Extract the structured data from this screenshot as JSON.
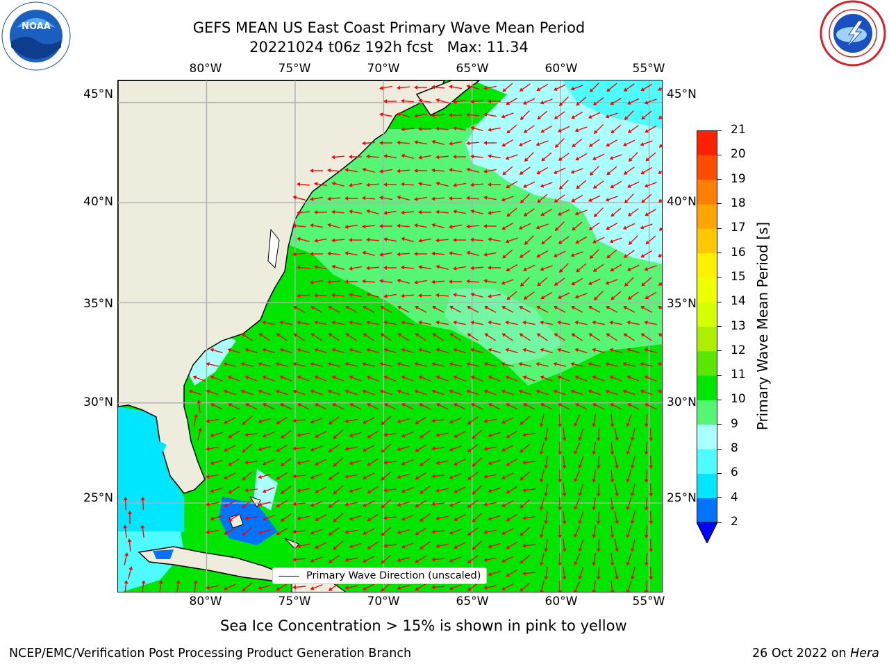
{
  "title": {
    "line1": "GEFS MEAN US East Coast Primary Wave Mean Period",
    "line2": "20221024 t06z 192h fcst   Max: 11.34"
  },
  "logos": {
    "left": {
      "name": "noaa-logo",
      "text": "NOAA",
      "ring_text": "NATIONAL OCEANIC AND ATMOSPHERIC ADMINISTRATION · U.S. DEPARTMENT OF COMMERCE"
    },
    "right": {
      "name": "nws-logo",
      "ring_text": "NATIONAL WEATHER SERVICE"
    }
  },
  "map": {
    "lon_labels": [
      "80°W",
      "75°W",
      "70°W",
      "65°W",
      "60°W",
      "55°W"
    ],
    "lat_labels": [
      "45°N",
      "40°N",
      "35°N",
      "30°N",
      "25°N"
    ],
    "lon_values": [
      -80,
      -75,
      -70,
      -65,
      -60,
      -55
    ],
    "lat_values": [
      45,
      40,
      35,
      30,
      25
    ],
    "extent": {
      "lon": [
        -85,
        -54.2
      ],
      "lat": [
        20.5,
        46.1
      ]
    },
    "legend_label": "Primary Wave Direction (unscaled)",
    "arrow_color": "#ff0000",
    "land_color": "#eeecdd"
  },
  "colorbar": {
    "label": "Primary Wave Mean Period [s]",
    "ticks": [
      "2",
      "4",
      "6",
      "8",
      "9",
      "10",
      "11",
      "12",
      "13",
      "14",
      "15",
      "16",
      "17",
      "18",
      "19",
      "20",
      "21"
    ],
    "colors": [
      "#0073ff",
      "#00e6ff",
      "#4dfcff",
      "#aaffff",
      "#55f576",
      "#00e600",
      "#5ae600",
      "#acf000",
      "#d6ff00",
      "#eeff00",
      "#fff000",
      "#ffc800",
      "#ffa500",
      "#ff8000",
      "#ff4d00",
      "#ff2000",
      "#ff0000"
    ],
    "extend_color": "#0000ff"
  },
  "notes": {
    "sea_ice": "Sea Ice Concentration > 15% is shown in pink to yellow"
  },
  "footer": {
    "left": "NCEP/EMC/Verification Post Processing Product Generation Branch",
    "right_prefix": "26 Oct 2022 on ",
    "right_machine": "Hera"
  }
}
